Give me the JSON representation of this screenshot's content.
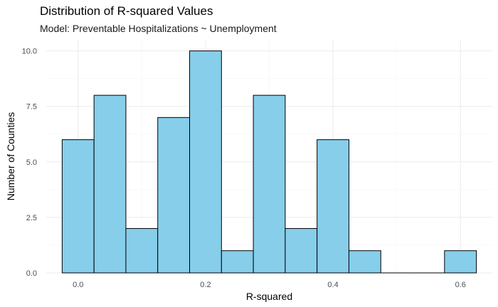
{
  "chart_data": {
    "type": "bar",
    "subtype": "histogram",
    "title": "Distribution of R-squared Values",
    "subtitle": "Model: Preventable Hospitalizations ~ Unemployment",
    "xlabel": "R-squared",
    "ylabel": "Number of Counties",
    "bin_width": 0.05,
    "bins": [
      {
        "x0": -0.025,
        "x1": 0.025,
        "count": 6
      },
      {
        "x0": 0.025,
        "x1": 0.075,
        "count": 8
      },
      {
        "x0": 0.075,
        "x1": 0.125,
        "count": 2
      },
      {
        "x0": 0.125,
        "x1": 0.175,
        "count": 7
      },
      {
        "x0": 0.175,
        "x1": 0.225,
        "count": 10
      },
      {
        "x0": 0.225,
        "x1": 0.275,
        "count": 1
      },
      {
        "x0": 0.275,
        "x1": 0.325,
        "count": 8
      },
      {
        "x0": 0.325,
        "x1": 0.375,
        "count": 2
      },
      {
        "x0": 0.375,
        "x1": 0.425,
        "count": 6
      },
      {
        "x0": 0.425,
        "x1": 0.475,
        "count": 1
      },
      {
        "x0": 0.475,
        "x1": 0.525,
        "count": 0
      },
      {
        "x0": 0.525,
        "x1": 0.575,
        "count": 0
      },
      {
        "x0": 0.575,
        "x1": 0.625,
        "count": 1
      }
    ],
    "xlim": [
      -0.05,
      0.65
    ],
    "ylim": [
      0,
      10.5
    ],
    "x_ticks": [
      0.0,
      0.2,
      0.4,
      0.6
    ],
    "x_tick_labels": [
      "0.0",
      "0.2",
      "0.4",
      "0.6"
    ],
    "y_ticks": [
      0,
      2.5,
      5,
      7.5,
      10
    ],
    "y_tick_labels": [
      "0.0",
      "2.5",
      "5.0",
      "7.5",
      "10.0"
    ],
    "grid": true,
    "legend": "none",
    "colors": {
      "bar_fill": "#87ceeb",
      "bar_stroke": "#000000",
      "grid_major": "#ebebeb",
      "grid_minor": "#f5f5f5",
      "tick_text": "#4d4d4d"
    }
  }
}
